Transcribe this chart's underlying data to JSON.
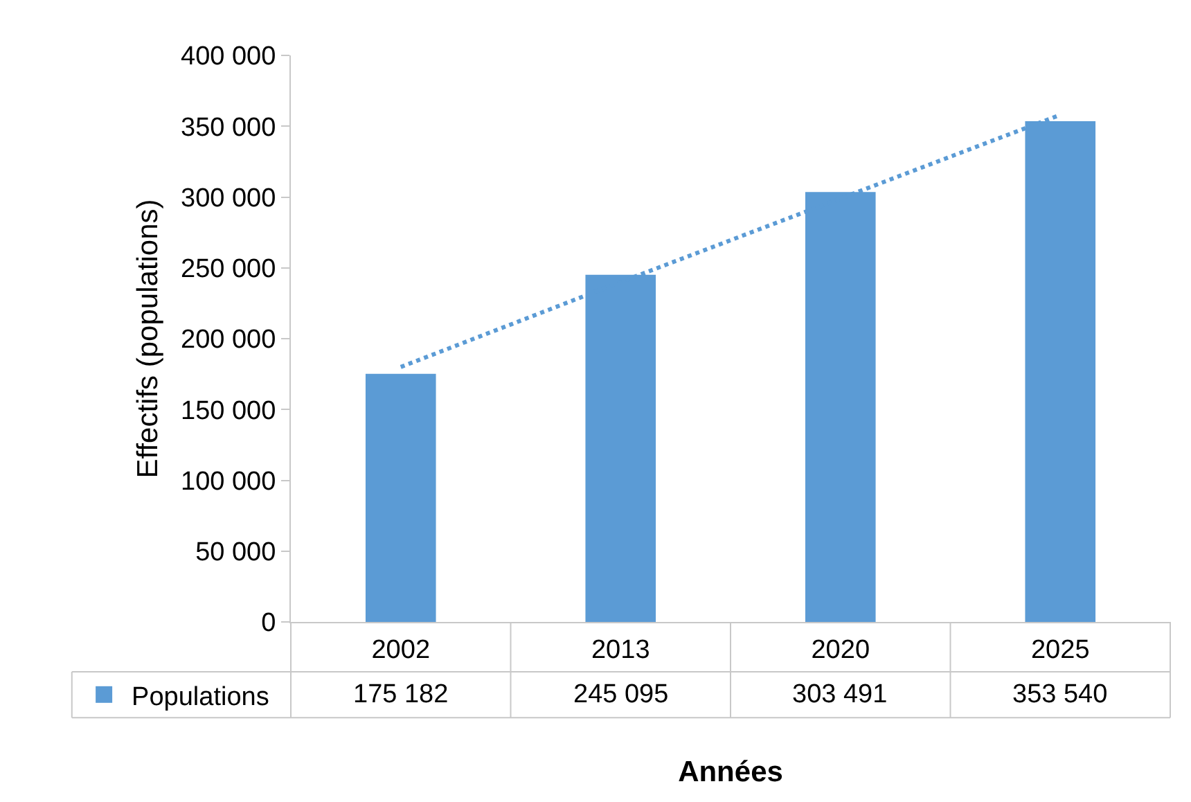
{
  "chart_data": {
    "type": "bar",
    "xlabel": "Années",
    "ylabel": "Effectifs (populations)",
    "categories": [
      "2002",
      "2013",
      "2020",
      "2025"
    ],
    "series": [
      {
        "name": "Populations",
        "color": "#5b9bd5",
        "values": [
          175182,
          245095,
          303491,
          353540
        ],
        "value_labels": [
          "175 182",
          "245 095",
          "303 491",
          "353 540"
        ]
      },
      {
        "type": "line",
        "color": "#5b9bd5",
        "line_style": "dotted",
        "values": [
          180000,
          240000,
          299000,
          358000
        ]
      }
    ],
    "ylim": [
      0,
      400000
    ],
    "yticks": [
      {
        "value": 0,
        "label": "0"
      },
      {
        "value": 50000,
        "label": "50 000"
      },
      {
        "value": 100000,
        "label": "100 000"
      },
      {
        "value": 150000,
        "label": "150 000"
      },
      {
        "value": 200000,
        "label": "200 000"
      },
      {
        "value": 250000,
        "label": "250 000"
      },
      {
        "value": 300000,
        "label": "300 000"
      },
      {
        "value": 350000,
        "label": "350 000"
      },
      {
        "value": 400000,
        "label": "400 000"
      }
    ],
    "grid": false,
    "legend": "bottom left"
  }
}
